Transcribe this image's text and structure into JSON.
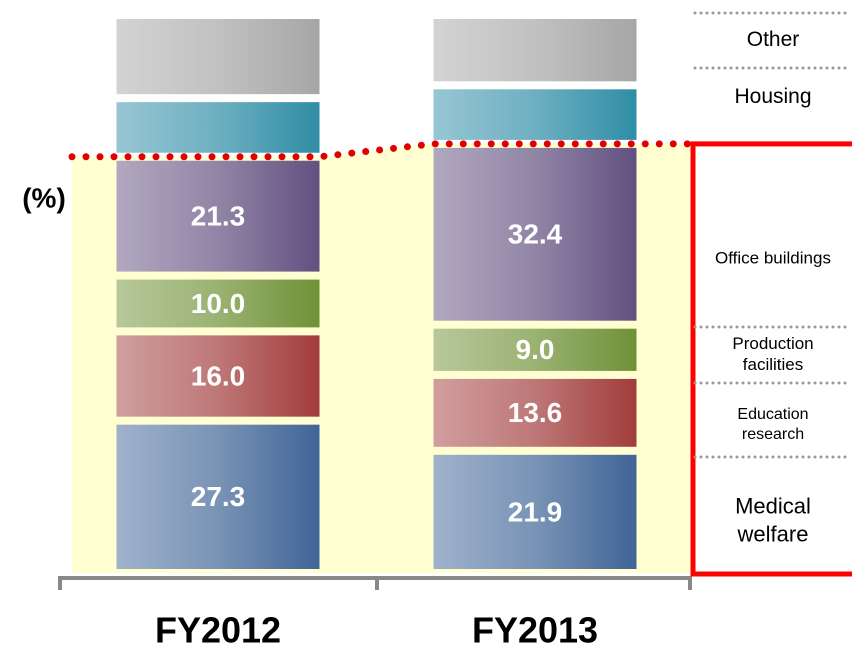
{
  "chart_data": {
    "type": "stacked_bar",
    "y_label": "(%)",
    "categories": [
      "FY2012",
      "FY2013"
    ],
    "ylim": [
      0,
      100
    ],
    "series": [
      {
        "name": "Medical welfare",
        "color": "#3f6496",
        "values": [
          27.3,
          21.9
        ],
        "value_labels": [
          "27.3",
          "21.9"
        ]
      },
      {
        "name": "Education research",
        "color": "#a23c3c",
        "values": [
          16.0,
          13.6
        ],
        "value_labels": [
          "16.0",
          "13.6"
        ]
      },
      {
        "name": "Production facilities",
        "color": "#6f9136",
        "values": [
          10.0,
          9.0
        ],
        "value_labels": [
          "10.0",
          "9.0"
        ]
      },
      {
        "name": "Office buildings",
        "color": "#625080",
        "values": [
          21.3,
          32.4
        ],
        "value_labels": [
          "21.3",
          "32.4"
        ]
      },
      {
        "name": "Housing",
        "color": "#2f8da6",
        "values": [
          10.5,
          10.5
        ]
      },
      {
        "name": "Other",
        "color": "#a6a6a6",
        "values": [
          14.9,
          12.6
        ]
      }
    ]
  }
}
